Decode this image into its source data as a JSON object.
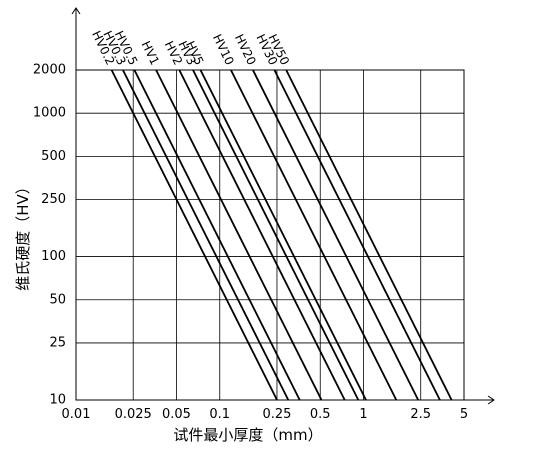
{
  "chart_data": {
    "type": "line",
    "xlabel": "试件最小厚度（mm）",
    "ylabel": "维氏硬度（HV）",
    "xscale": "log",
    "yscale": "log",
    "grid": true,
    "color": "#000000",
    "xlim": [
      0.01,
      5
    ],
    "ylim": [
      10,
      2000
    ],
    "xticks": [
      0.01,
      0.025,
      0.05,
      0.1,
      0.25,
      0.5,
      1,
      2.5,
      5
    ],
    "yticks": [
      10,
      25,
      50,
      100,
      250,
      500,
      1000,
      2000
    ],
    "series": [
      {
        "name": "HV0.2",
        "x": [
          0.0177,
          0.25
        ],
        "values": [
          2000,
          10
        ]
      },
      {
        "name": "HV0.3",
        "x": [
          0.0212,
          0.3
        ],
        "values": [
          2000,
          10
        ]
      },
      {
        "name": "HV0.5",
        "x": [
          0.0255,
          0.36
        ],
        "values": [
          2000,
          10
        ]
      },
      {
        "name": "HV1",
        "x": [
          0.0361,
          0.51
        ],
        "values": [
          2000,
          10
        ]
      },
      {
        "name": "HV2",
        "x": [
          0.0523,
          0.74
        ],
        "values": [
          2000,
          10
        ]
      },
      {
        "name": "HV3",
        "x": [
          0.0651,
          0.92
        ],
        "values": [
          2000,
          10
        ]
      },
      {
        "name": "HV5",
        "x": [
          0.0735,
          1.04
        ],
        "values": [
          2000,
          10
        ]
      },
      {
        "name": "HV10",
        "x": [
          0.1195,
          1.69
        ],
        "values": [
          2000,
          10
        ]
      },
      {
        "name": "HV20",
        "x": [
          0.17,
          2.4
        ],
        "values": [
          2000,
          10
        ]
      },
      {
        "name": "HV30",
        "x": [
          0.24,
          3.4
        ],
        "values": [
          2000,
          10
        ]
      },
      {
        "name": "HV50",
        "x": [
          0.29,
          4.1
        ],
        "values": [
          2000,
          10
        ]
      }
    ]
  }
}
